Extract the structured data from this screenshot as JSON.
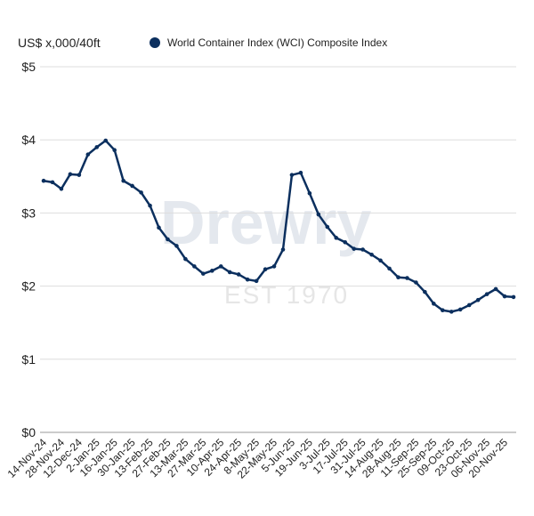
{
  "chart_data": {
    "type": "line",
    "ylabel": "US$ x,000/40ft",
    "ylim": [
      0,
      5
    ],
    "yticks": [
      "$0",
      "$1",
      "$2",
      "$3",
      "$4",
      "$5"
    ],
    "grid": true,
    "legend_position": "top",
    "series": [
      {
        "name": "World Container Index (WCI) Composite Index",
        "color": "#0b2f5e",
        "values": [
          3.44,
          3.42,
          3.33,
          3.53,
          3.52,
          3.8,
          3.9,
          3.99,
          3.86,
          3.44,
          3.37,
          3.28,
          3.1,
          2.8,
          2.64,
          2.55,
          2.37,
          2.27,
          2.17,
          2.21,
          2.27,
          2.19,
          2.16,
          2.09,
          2.07,
          2.23,
          2.27,
          2.5,
          3.52,
          3.55,
          3.27,
          2.98,
          2.81,
          2.66,
          2.6,
          2.51,
          2.5,
          2.43,
          2.35,
          2.24,
          2.12,
          2.11,
          2.05,
          1.92,
          1.76,
          1.67,
          1.65,
          1.68,
          1.74,
          1.81,
          1.89,
          1.96,
          1.86,
          1.85
        ]
      }
    ],
    "xtick_labels": [
      "14-Nov-24",
      "28-Nov-24",
      "12-Dec-24",
      "2-Jan-25",
      "16-Jan-25",
      "30-Jan-25",
      "13-Feb-25",
      "27-Feb-25",
      "13-Mar-25",
      "27-Mar-25",
      "10-Apr-25",
      "24-Apr-25",
      "8-May-25",
      "22-May-25",
      "5-Jun-25",
      "19-Jun-25",
      "3-Jul-25",
      "17-Jul-25",
      "31-Jul-25",
      "14-Aug-25",
      "28-Aug-25",
      "11-Sep-25",
      "25-Sep-25",
      "09-Oct-25",
      "23-Oct-25",
      "06-Nov-25",
      "20-Nov-25"
    ]
  },
  "watermark": {
    "name": "Drewry",
    "est": "EST 1970"
  }
}
